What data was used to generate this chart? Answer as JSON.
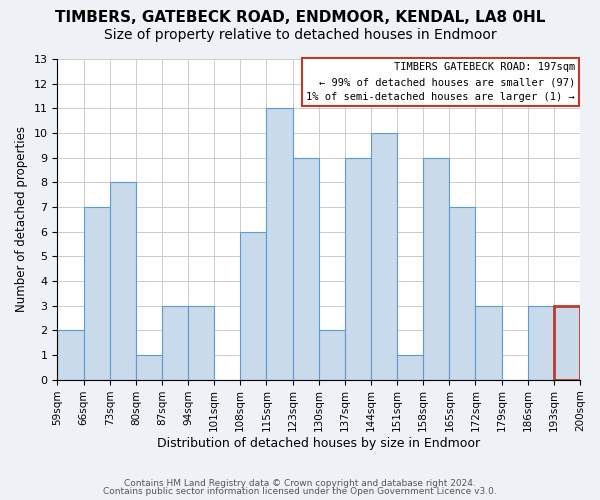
{
  "title": "TIMBERS, GATEBECK ROAD, ENDMOOR, KENDAL, LA8 0HL",
  "subtitle": "Size of property relative to detached houses in Endmoor",
  "xlabel": "Distribution of detached houses by size in Endmoor",
  "ylabel": "Number of detached properties",
  "bar_labels": [
    "59sqm",
    "66sqm",
    "73sqm",
    "80sqm",
    "87sqm",
    "94sqm",
    "101sqm",
    "108sqm",
    "115sqm",
    "123sqm",
    "130sqm",
    "137sqm",
    "144sqm",
    "151sqm",
    "158sqm",
    "165sqm",
    "172sqm",
    "179sqm",
    "186sqm",
    "193sqm"
  ],
  "xtick_labels": [
    "59sqm",
    "66sqm",
    "73sqm",
    "80sqm",
    "87sqm",
    "94sqm",
    "101sqm",
    "108sqm",
    "115sqm",
    "123sqm",
    "130sqm",
    "137sqm",
    "144sqm",
    "151sqm",
    "158sqm",
    "165sqm",
    "172sqm",
    "179sqm",
    "186sqm",
    "193sqm",
    "200sqm"
  ],
  "bar_heights": [
    2,
    7,
    8,
    1,
    3,
    3,
    0,
    6,
    11,
    9,
    2,
    9,
    10,
    1,
    9,
    7,
    3,
    0,
    3,
    3
  ],
  "bar_color": "#c9daea",
  "bar_edge_color": "#5b9bd5",
  "highlight_bar_edge_color": "#c0392b",
  "annotation_box_edge_color": "#c0392b",
  "annotation_title": "TIMBERS GATEBECK ROAD: 197sqm",
  "annotation_line1": "← 99% of detached houses are smaller (97)",
  "annotation_line2": "1% of semi-detached houses are larger (1) →",
  "ylim": [
    0,
    13
  ],
  "yticks": [
    0,
    1,
    2,
    3,
    4,
    5,
    6,
    7,
    8,
    9,
    10,
    11,
    12,
    13
  ],
  "footer1": "Contains HM Land Registry data © Crown copyright and database right 2024.",
  "footer2": "Contains public sector information licensed under the Open Government Licence v3.0.",
  "bg_color": "#eef2f7",
  "plot_bg_color": "#ffffff",
  "grid_color": "#cccccc",
  "title_fontsize": 11,
  "subtitle_fontsize": 10
}
